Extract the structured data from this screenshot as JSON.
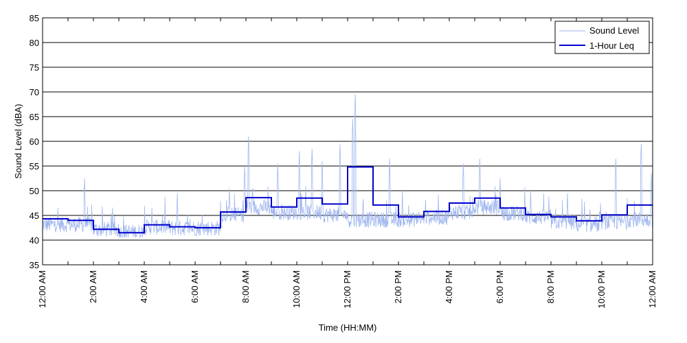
{
  "chart_data": {
    "type": "line",
    "xlabel": "Time (HH:MM)",
    "ylabel": "Sound Level (dBA)",
    "ylim": [
      35,
      85
    ],
    "xlim_hours": [
      0,
      24
    ],
    "yticks": [
      35,
      40,
      45,
      50,
      55,
      60,
      65,
      70,
      75,
      80,
      85
    ],
    "xtick_labels": [
      "12:00 AM",
      "2:00 AM",
      "4:00 AM",
      "6:00 AM",
      "8:00 AM",
      "10:00 AM",
      "12:00 PM",
      "2:00 PM",
      "4:00 PM",
      "6:00 PM",
      "8:00 PM",
      "10:00 PM",
      "12:00 AM"
    ],
    "grid": "horizontal",
    "legend": "top-right",
    "series": [
      {
        "name": "Sound Level",
        "color": "#9fb6ee",
        "style": "thin line",
        "hourly_baseline": [
          42.5,
          42.5,
          41.5,
          41.0,
          42.0,
          41.8,
          41.8,
          44.5,
          46.0,
          45.0,
          45.0,
          44.5,
          43.5,
          43.5,
          43.5,
          44.0,
          45.0,
          46.0,
          44.8,
          44.0,
          43.0,
          42.5,
          43.0,
          43.5
        ],
        "peaks": [
          {
            "hour": 1.65,
            "value": 52.5
          },
          {
            "hour": 4.3,
            "value": 46.5
          },
          {
            "hour": 5.3,
            "value": 49.5
          },
          {
            "hour": 7.35,
            "value": 50.5
          },
          {
            "hour": 7.95,
            "value": 55.0
          },
          {
            "hour": 8.1,
            "value": 61.0
          },
          {
            "hour": 9.25,
            "value": 55.5
          },
          {
            "hour": 10.1,
            "value": 58.0
          },
          {
            "hour": 10.6,
            "value": 58.5
          },
          {
            "hour": 11.0,
            "value": 56.0
          },
          {
            "hour": 11.7,
            "value": 59.5
          },
          {
            "hour": 12.2,
            "value": 64.5
          },
          {
            "hour": 12.3,
            "value": 69.5
          },
          {
            "hour": 13.65,
            "value": 56.5
          },
          {
            "hour": 16.55,
            "value": 55.5
          },
          {
            "hour": 17.2,
            "value": 56.5
          },
          {
            "hour": 18.0,
            "value": 52.5
          },
          {
            "hour": 19.2,
            "value": 50.0
          },
          {
            "hour": 20.65,
            "value": 49.5
          },
          {
            "hour": 22.55,
            "value": 56.5
          },
          {
            "hour": 23.55,
            "value": 59.5
          },
          {
            "hour": 23.95,
            "value": 53.5
          }
        ]
      },
      {
        "name": "1-Hour Leq",
        "color": "#0000cc",
        "style": "step",
        "hours": [
          0,
          1,
          2,
          3,
          4,
          5,
          6,
          7,
          8,
          9,
          10,
          11,
          12,
          13,
          14,
          15,
          16,
          17,
          18,
          19,
          20,
          21,
          22,
          23
        ],
        "values": [
          44.3,
          44.0,
          42.2,
          41.5,
          43.1,
          42.7,
          42.5,
          45.7,
          48.6,
          46.7,
          48.5,
          47.3,
          54.8,
          47.1,
          44.7,
          45.8,
          47.5,
          48.5,
          46.5,
          45.2,
          44.7,
          43.9,
          45.1,
          47.1
        ]
      }
    ]
  }
}
